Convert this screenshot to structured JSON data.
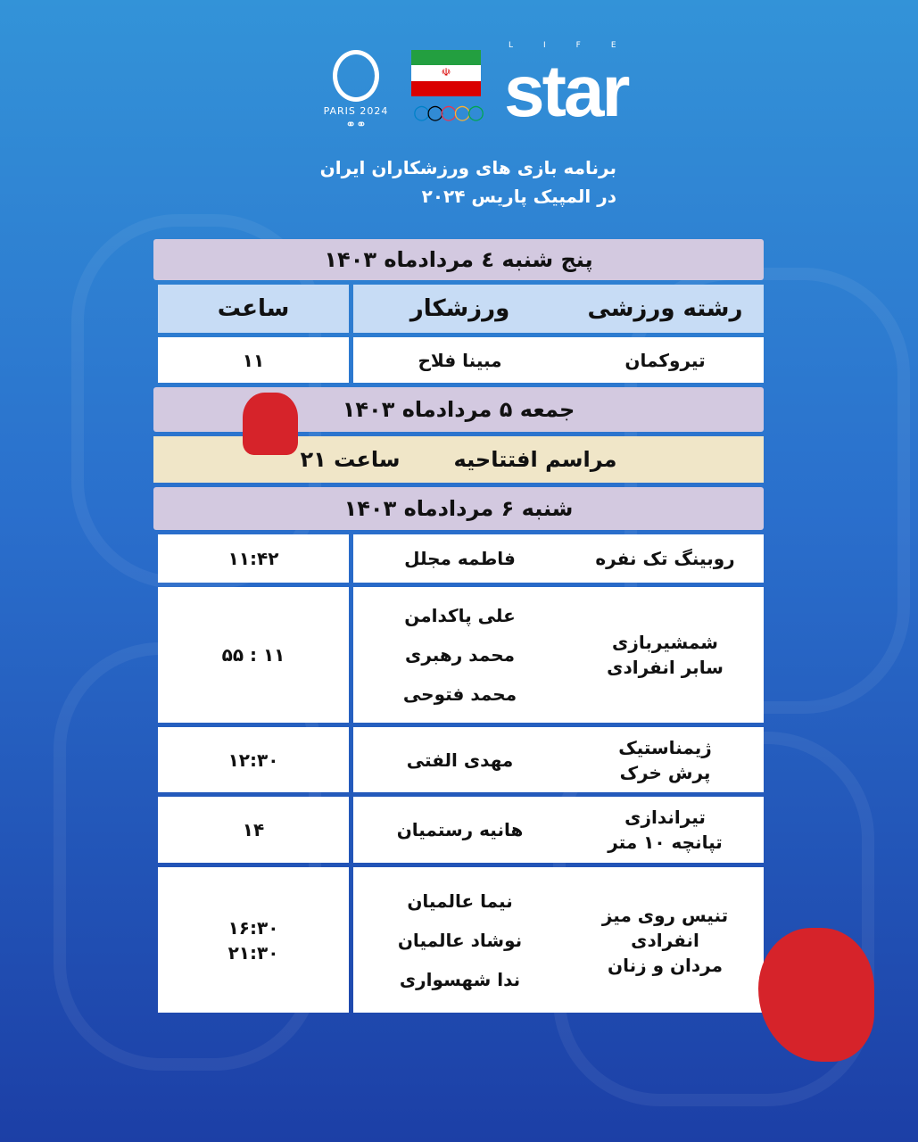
{
  "logos": {
    "paris": "PARIS 2024",
    "brand": "star",
    "brand_sup": "LIFE"
  },
  "title": {
    "line1": "برنامه بازی های ورزشکاران ایران",
    "line2": "در المپیک پاریس ۲۰۲۴"
  },
  "colors": {
    "day_header": "#d3c9e0",
    "column_header": "#c7dcf5",
    "ceremony": "#f0e6c8"
  },
  "days": [
    {
      "label": "پنج شنبه ٤ مردادماه ۱۴۰۳"
    },
    {
      "label": "جمعه ۵ مردادماه ۱۴۰۳"
    },
    {
      "label": "شنبه ۶ مردادماه ۱۴۰۳"
    }
  ],
  "columns": {
    "sport": "رشته ورزشی",
    "athlete": "ورزشکار",
    "time": "ساعت"
  },
  "day1_rows": [
    {
      "sport": "تیروکمان",
      "athletes": [
        "مبینا فلاح"
      ],
      "time": [
        "۱۱"
      ]
    }
  ],
  "ceremony": {
    "label": "مراسم افتتاحیه",
    "time": "ساعت ۲۱"
  },
  "day3_rows": [
    {
      "sport": [
        "روبینگ تک نفره"
      ],
      "athletes": [
        "فاطمه مجلل"
      ],
      "time": [
        "۱۱:۴۲"
      ]
    },
    {
      "sport": [
        "شمشیربازی",
        "سابر انفرادی"
      ],
      "athletes": [
        "علی پاکدامن",
        "محمد رهبری",
        "محمد فتوحی"
      ],
      "time": [
        "۱۱ : ۵۵"
      ]
    },
    {
      "sport": [
        "ژیمناستیک",
        "پرش خرک"
      ],
      "athletes": [
        "مهدی الفتی"
      ],
      "time": [
        "۱۲:۳۰"
      ]
    },
    {
      "sport": [
        "تیراندازی",
        "تپانچه ۱۰ متر"
      ],
      "athletes": [
        "هانیه رستمیان"
      ],
      "time": [
        "۱۴"
      ]
    },
    {
      "sport": [
        "تنیس روی میز",
        "انفرادی",
        "مردان و زنان"
      ],
      "athletes": [
        "نیما عالمیان",
        "نوشاد عالمیان",
        "ندا شهسواری"
      ],
      "time": [
        "۱۶:۳۰",
        "۲۱:۳۰"
      ]
    }
  ]
}
